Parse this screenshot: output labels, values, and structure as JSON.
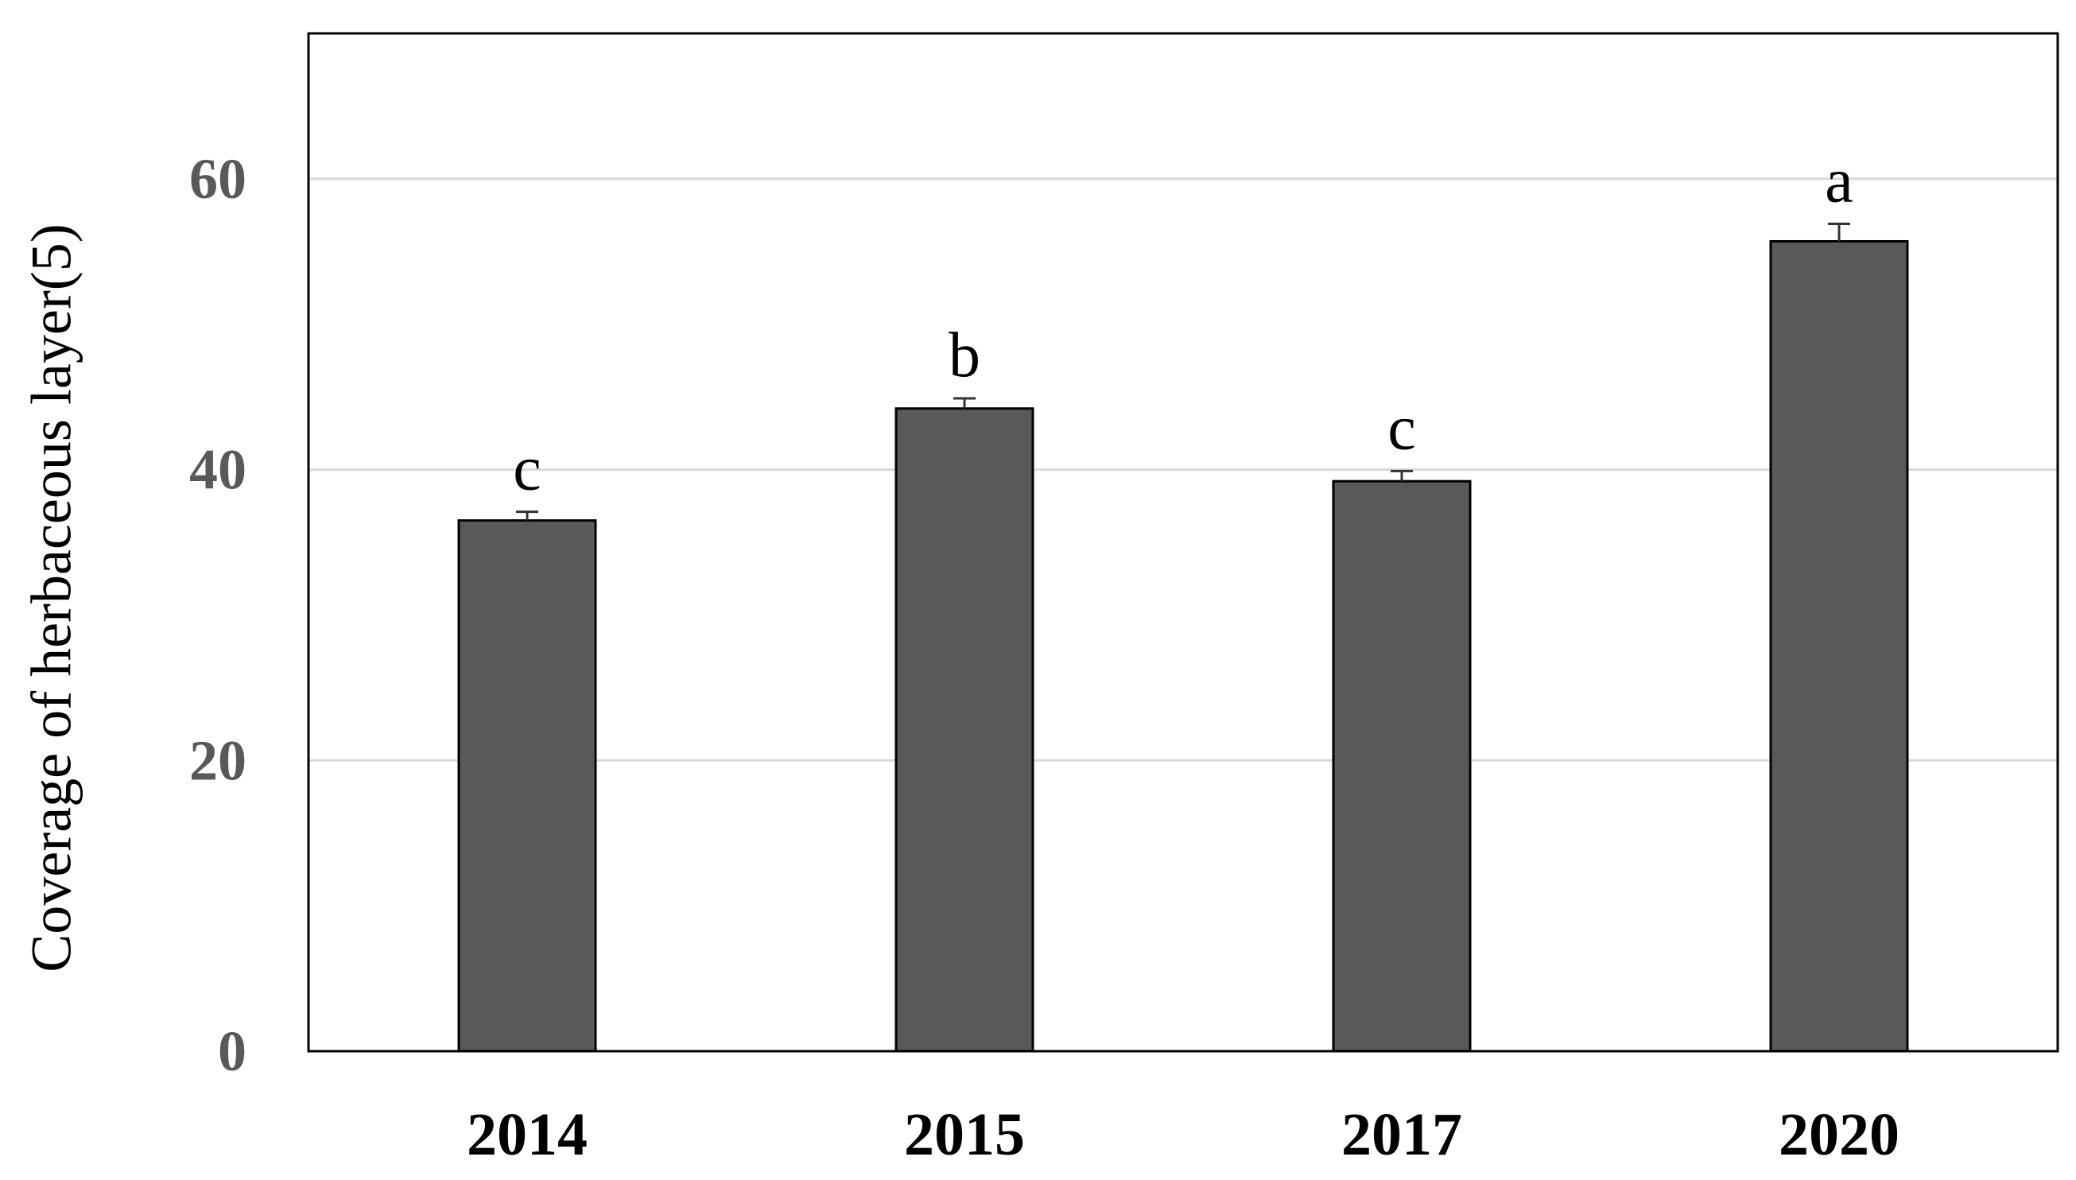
{
  "chart_data": {
    "type": "bar",
    "title": "",
    "xlabel": "",
    "ylabel": "Coverage of herbaceous layer(5)",
    "categories": [
      "2014",
      "2015",
      "2017",
      "2020"
    ],
    "values": [
      36.5,
      44.2,
      39.2,
      55.7
    ],
    "errors": [
      0.6,
      0.7,
      0.7,
      1.2
    ],
    "significance": [
      "c",
      "b",
      "c",
      "a"
    ],
    "ylim": [
      0,
      70
    ],
    "yticks": [
      0,
      20,
      40,
      60
    ],
    "ytick_labels": [
      "0",
      "20",
      "40",
      "60"
    ],
    "grid": true,
    "legend": "none",
    "colors": {
      "bar": "#595959",
      "gridline": "#d9d9d9",
      "axis": "#000000"
    }
  }
}
